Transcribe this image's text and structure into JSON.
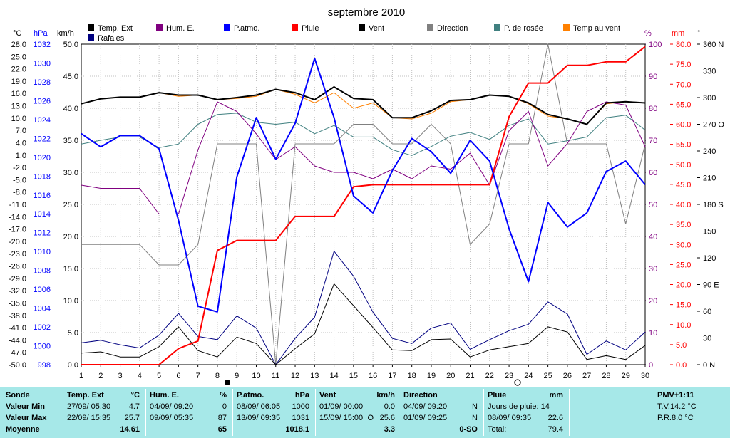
{
  "chart_data": {
    "type": "line",
    "title": "septembre 2010",
    "x": [
      1,
      2,
      3,
      4,
      5,
      6,
      7,
      8,
      9,
      10,
      11,
      12,
      13,
      14,
      15,
      16,
      17,
      18,
      19,
      20,
      21,
      22,
      23,
      24,
      25,
      26,
      27,
      28,
      29,
      30
    ],
    "xlim": [
      1,
      30
    ],
    "axes": {
      "temp_c": {
        "unit": "°C",
        "ticks": [
          "28.0",
          "25.0",
          "22.0",
          "19.0",
          "16.0",
          "13.0",
          "10.0",
          "7.0",
          "4.0",
          "1.0",
          "-2.0",
          "-5.0",
          "-8.0",
          "-11.0",
          "-14.0",
          "-17.0",
          "-20.0",
          "-23.0",
          "-26.0",
          "-29.0",
          "-32.0",
          "-35.0",
          "-38.0",
          "-41.0",
          "-44.0",
          "-47.0",
          "-50.0"
        ],
        "color": "#000000"
      },
      "pressure_hpa": {
        "unit": "hPa",
        "ticks": [
          "1032",
          "1030",
          "1028",
          "1026",
          "1024",
          "1022",
          "1020",
          "1018",
          "1016",
          "1014",
          "1012",
          "1010",
          "1008",
          "1006",
          "1004",
          "1002",
          "1000",
          "998"
        ],
        "color": "#0000ff"
      },
      "wind_kmh": {
        "unit": "km/h",
        "ylim": [
          0,
          50
        ],
        "ticks": [
          "50.0",
          "45.0",
          "40.0",
          "35.0",
          "30.0",
          "25.0",
          "20.0",
          "15.0",
          "10.0",
          "5.0",
          "0.0"
        ],
        "color": "#000000"
      },
      "humidity_pct": {
        "unit": "%",
        "ylim": [
          0,
          100
        ],
        "ticks": [
          "100",
          "90",
          "80",
          "70",
          "60",
          "50",
          "40",
          "30",
          "20",
          "10",
          "0"
        ],
        "color": "#800080"
      },
      "rain_mm": {
        "unit": "mm",
        "ylim": [
          0,
          80
        ],
        "ticks": [
          "80.0",
          "75.0",
          "70.0",
          "65.0",
          "60.0",
          "55.0",
          "50.0",
          "45.0",
          "40.0",
          "35.0",
          "30.0",
          "25.0",
          "20.0",
          "15.0",
          "10.0",
          "5.0",
          "0.0"
        ],
        "color": "#ff0000"
      },
      "direction_deg": {
        "unit": "°",
        "ylim": [
          0,
          360
        ],
        "ticks": [
          "360 N",
          "330",
          "300",
          "270 O",
          "240",
          "210",
          "180 S",
          "150",
          "120",
          "90 E",
          "60",
          "30",
          "0 N"
        ],
        "color": "#000000"
      }
    },
    "legend": [
      {
        "name": "Temp. Ext",
        "color": "#000000"
      },
      {
        "name": "Hum. E.",
        "color": "#800080"
      },
      {
        "name": "P.atmo.",
        "color": "#0000ff"
      },
      {
        "name": "Pluie",
        "color": "#ff0000"
      },
      {
        "name": "Vent",
        "color": "#000000"
      },
      {
        "name": "Direction",
        "color": "#808080"
      },
      {
        "name": "P. de rosée",
        "color": "#408080"
      },
      {
        "name": "Temp au vent",
        "color": "#ff8000"
      },
      {
        "name": "Rafales",
        "color": "#000080"
      }
    ],
    "series": [
      {
        "name": "Temp. Ext",
        "axis": "temp_c",
        "color": "#000000",
        "width": 2,
        "values": [
          13.5,
          14.7,
          15.1,
          15.1,
          16.2,
          15.6,
          15.6,
          14.5,
          15.0,
          15.6,
          17.0,
          16.2,
          14.5,
          17.6,
          14.8,
          14.5,
          10.1,
          10.1,
          11.8,
          14.3,
          14.5,
          15.6,
          15.3,
          13.7,
          10.9,
          9.8,
          8.5,
          13.7,
          14.0,
          13.7
        ]
      },
      {
        "name": "Temp au vent",
        "axis": "temp_c",
        "color": "#ff8000",
        "width": 1,
        "values": [
          13.5,
          14.7,
          15.1,
          15.1,
          16.2,
          15.3,
          15.6,
          14.5,
          14.8,
          15.3,
          17.0,
          15.8,
          13.7,
          16.2,
          12.4,
          13.7,
          10.1,
          9.8,
          11.2,
          14.0,
          14.5,
          15.6,
          15.3,
          13.5,
          10.5,
          9.8,
          8.5,
          13.5,
          14.0,
          13.7
        ]
      },
      {
        "name": "P. de rosée",
        "axis": "temp_c",
        "color": "#408080",
        "width": 1,
        "values": [
          3.7,
          4.6,
          5.4,
          5.4,
          2.8,
          3.7,
          8.5,
          10.9,
          11.2,
          9.0,
          8.5,
          9.0,
          6.2,
          8.2,
          5.4,
          5.4,
          2.3,
          0.9,
          3.1,
          5.6,
          6.5,
          4.8,
          8.2,
          9.8,
          3.7,
          4.5,
          5.4,
          10.1,
          10.7,
          7.1
        ]
      },
      {
        "name": "Hum. E.",
        "axis": "humidity_pct",
        "color": "#800080",
        "width": 1,
        "values": [
          56,
          55,
          55,
          55,
          47,
          47,
          67,
          82,
          79,
          72,
          64,
          68,
          62,
          60,
          60,
          58,
          61,
          58,
          62,
          61,
          66,
          56,
          73,
          79,
          62,
          69,
          79,
          82,
          81,
          68
        ]
      },
      {
        "name": "P.atmo.",
        "axis": "pressure_hpa",
        "color": "#0000ff",
        "width": 2,
        "values": [
          1022.5,
          1021.1,
          1022.3,
          1022.3,
          1020.9,
          1013.3,
          1004.2,
          1003.6,
          1017.9,
          1024.2,
          1019.8,
          1023.6,
          1030.5,
          1024.2,
          1015.9,
          1014.1,
          1018.6,
          1022.0,
          1020.6,
          1018.3,
          1021.8,
          1019.6,
          1012.4,
          1006.8,
          1015.2,
          1012.6,
          1014.1,
          1018.5,
          1019.6,
          1017.1
        ]
      },
      {
        "name": "Pluie",
        "axis": "rain_mm",
        "color": "#ff0000",
        "width": 2,
        "values": [
          0,
          0,
          0,
          0,
          0,
          4.0,
          5.9,
          28.5,
          31.0,
          31.0,
          31.0,
          37.0,
          37.0,
          37.0,
          44.4,
          44.9,
          44.9,
          44.9,
          44.9,
          44.9,
          44.9,
          44.9,
          61.9,
          70.3,
          70.3,
          74.7,
          74.7,
          75.6,
          75.6,
          79.4
        ]
      },
      {
        "name": "Vent",
        "axis": "wind_kmh",
        "color": "#000000",
        "width": 1,
        "values": [
          1.8,
          2.0,
          1.2,
          1.2,
          2.8,
          5.9,
          2.2,
          1.2,
          4.3,
          3.3,
          0,
          2.5,
          4.8,
          12.6,
          9.2,
          5.8,
          2.3,
          2.2,
          3.9,
          4.0,
          1.2,
          2.3,
          2.8,
          3.3,
          5.9,
          5.1,
          0.8,
          1.4,
          0.8,
          3.0
        ]
      },
      {
        "name": "Rafales",
        "axis": "wind_kmh",
        "color": "#000080",
        "width": 1,
        "values": [
          3.4,
          3.8,
          3.1,
          2.6,
          4.6,
          8.0,
          4.4,
          3.9,
          7.6,
          5.7,
          0,
          4.1,
          7.4,
          17.7,
          13.8,
          8.2,
          4.1,
          3.3,
          5.7,
          6.5,
          2.4,
          3.9,
          5.3,
          6.3,
          9.8,
          7.9,
          1.6,
          3.7,
          2.3,
          5.1
        ]
      },
      {
        "name": "Direction",
        "axis": "direction_deg",
        "color": "#808080",
        "width": 1,
        "values": [
          135,
          135,
          135,
          135,
          112,
          112,
          135,
          248,
          248,
          248,
          0,
          248,
          248,
          248,
          270,
          270,
          248,
          248,
          270,
          248,
          135,
          158,
          248,
          248,
          360,
          248,
          248,
          248,
          158,
          248
        ]
      }
    ]
  },
  "stats": {
    "header": [
      "Sonde",
      "Temp. Ext",
      "°C",
      "Hum. E.",
      "%",
      "P.atmo.",
      "hPa",
      "Vent",
      "km/h",
      "Direction",
      "Pluie",
      "mm",
      "PMV+1:11"
    ],
    "row_labels": [
      "Valeur Min",
      "Valeur Max",
      "Moyenne"
    ],
    "temp": {
      "min_dt": "27/09/  05:30",
      "min": "4.7",
      "max_dt": "22/09/  15:35",
      "max": "25.7",
      "avg": "14.61"
    },
    "hum": {
      "min_dt": "04/09/  09:20",
      "min": "0",
      "max_dt": "09/09/  05:35",
      "max": "87",
      "avg": "65"
    },
    "press": {
      "min_dt": "08/09/  06:05",
      "min": "1000",
      "max_dt": "13/09/  09:35",
      "max": "1031",
      "avg": "1018.1"
    },
    "wind": {
      "min_dt": "01/09/  00:00",
      "min": "0.0",
      "max_dt": "15/09/  15:00",
      "max_dir": "O",
      "max": "25.6",
      "avg": "3.3"
    },
    "dir": {
      "min_dt": "04/09/  09:20",
      "min": "N",
      "max_dt": "01/09/  09:25",
      "max": "N",
      "avg": "0-SO"
    },
    "rain": {
      "l1": "Jours de pluie: 14",
      "l2_dt": "08/09/  09:35",
      "l2": "22.6",
      "l3": "Total:",
      "l3_val": "79.4"
    },
    "pmv": {
      "l1": "T.V.14.2 °C",
      "l2": "P.R.8.0 °C"
    }
  }
}
